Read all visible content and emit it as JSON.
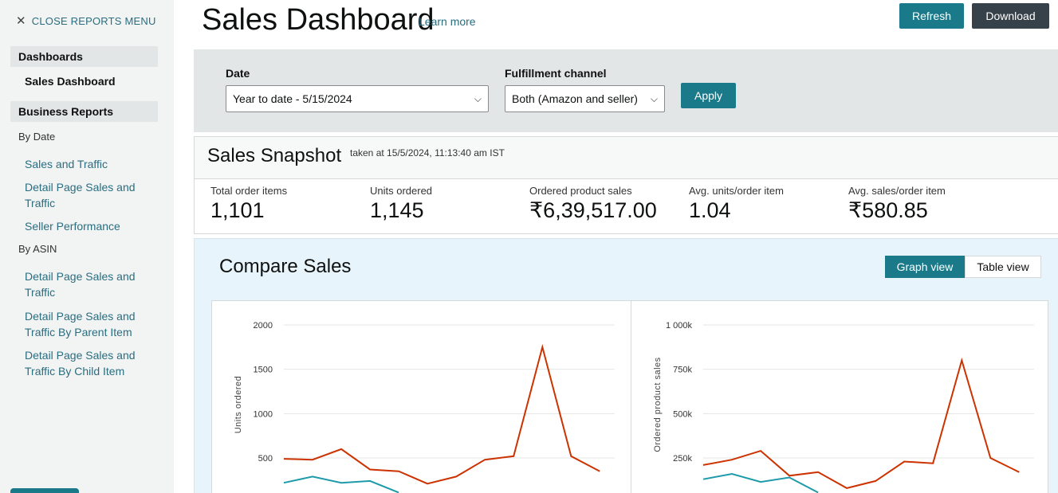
{
  "sidebar": {
    "close_label": "CLOSE REPORTS MENU",
    "dashboards_header": "Dashboards",
    "active_item": "Sales Dashboard",
    "business_reports_header": "Business Reports",
    "by_date_label": "By Date",
    "by_date_items": [
      "Sales and Traffic",
      "Detail Page Sales and Traffic",
      "Seller Performance"
    ],
    "by_asin_label": "By ASIN",
    "by_asin_items": [
      "Detail Page Sales and Traffic",
      "Detail Page Sales and Traffic By Parent Item",
      "Detail Page Sales and Traffic By Child Item"
    ]
  },
  "header": {
    "title": "Sales Dashboard",
    "learn_more": "Learn more",
    "refresh_label": "Refresh",
    "download_label": "Download"
  },
  "filters": {
    "date_label": "Date",
    "date_value": "Year to date - 5/15/2024",
    "channel_label": "Fulfillment channel",
    "channel_value": "Both (Amazon and seller)",
    "apply_label": "Apply"
  },
  "snapshot": {
    "title": "Sales Snapshot",
    "taken": "taken at 15/5/2024, 11:13:40 am IST",
    "metrics": [
      {
        "label": "Total order items",
        "value": "1,101"
      },
      {
        "label": "Units ordered",
        "value": "1,145"
      },
      {
        "label": "Ordered product sales",
        "value": "₹6,39,517.00"
      },
      {
        "label": "Avg. units/order item",
        "value": "1.04"
      },
      {
        "label": "Avg. sales/order item",
        "value": "₹580.85"
      }
    ]
  },
  "compare": {
    "title": "Compare Sales",
    "graph_view_label": "Graph view",
    "table_view_label": "Table view"
  },
  "colors": {
    "accent": "#1a7a8a",
    "series_current": "#cc3300",
    "series_compare": "#1e9aaa"
  },
  "chart_data": [
    {
      "type": "line",
      "ylabel": "Units ordered",
      "ylim": [
        0,
        2000
      ],
      "yticks": [
        "2000",
        "1500",
        "1000",
        "500"
      ],
      "ytick_values": [
        2000,
        1500,
        1000,
        500
      ],
      "series": [
        {
          "values": [
            490,
            480,
            600,
            370,
            350,
            210,
            290,
            480,
            520,
            1750,
            520,
            350
          ]
        },
        {
          "values": [
            220,
            290,
            220,
            240,
            110
          ]
        }
      ]
    },
    {
      "type": "line",
      "ylabel": "Ordered product sales",
      "ylim": [
        0,
        1000000
      ],
      "yticks": [
        "1 000k",
        "750k",
        "500k",
        "250k"
      ],
      "ytick_values": [
        1000000,
        750000,
        500000,
        250000
      ],
      "series": [
        {
          "values": [
            210000,
            240000,
            290000,
            150000,
            170000,
            80000,
            120000,
            230000,
            220000,
            800000,
            250000,
            170000
          ]
        },
        {
          "values": [
            130000,
            160000,
            115000,
            140000,
            55000
          ]
        }
      ]
    }
  ]
}
